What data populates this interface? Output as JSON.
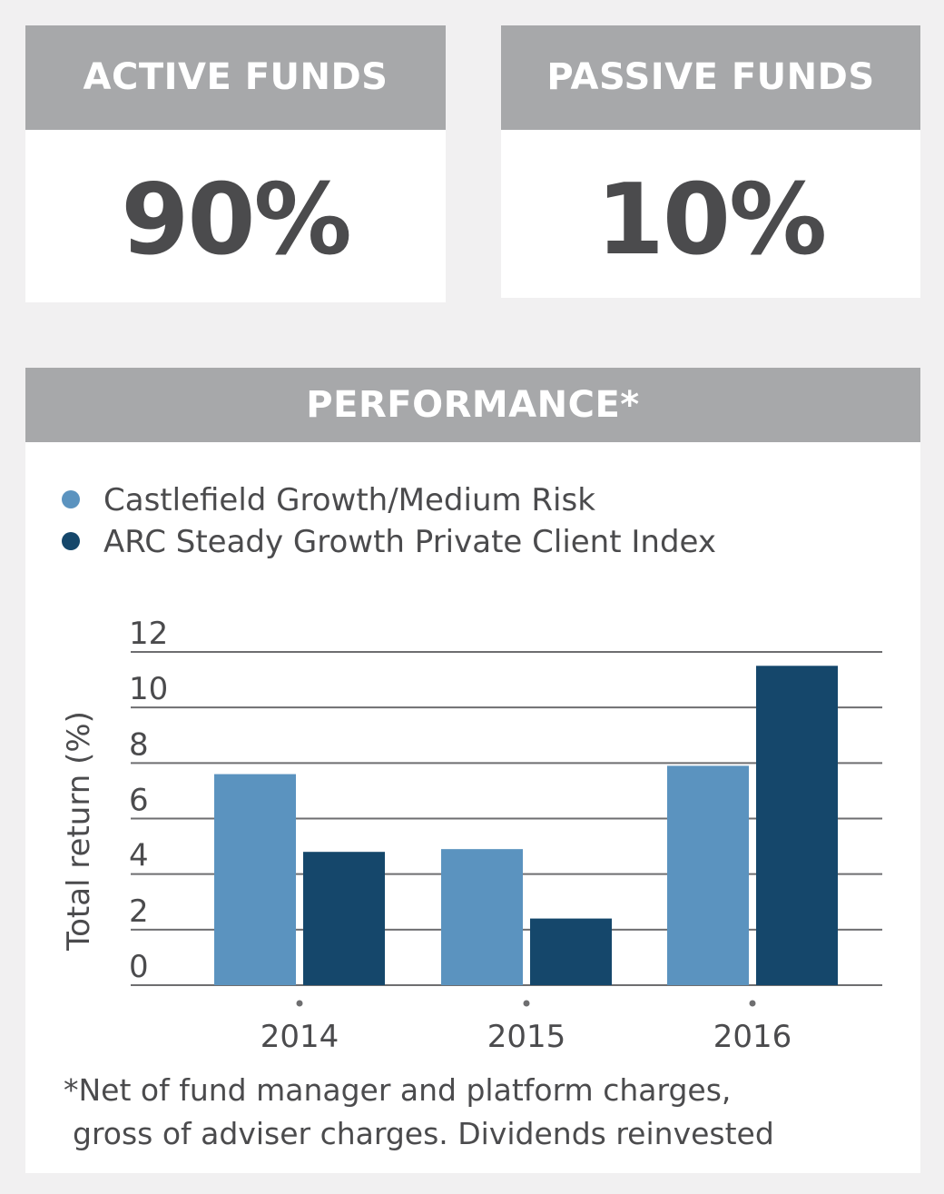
{
  "active": {
    "title": "ACTIVE FUNDS",
    "value": "90%"
  },
  "passive": {
    "title": "PASSIVE FUNDS",
    "value": "10%"
  },
  "performance": {
    "title": "PERFORMANCE*",
    "footnote_line1": "*Net of fund manager and platform charges,",
    "footnote_line2": "gross of adviser charges. Dividends reinvested"
  },
  "colors": {
    "header_bg": "#a7a8aa",
    "series_light": "#5b93bf",
    "series_dark": "#15476b",
    "text": "#4b4b4d",
    "grid": "#6e6e70"
  },
  "chart_data": {
    "type": "bar",
    "categories": [
      "2014",
      "2015",
      "2016"
    ],
    "series": [
      {
        "name": "Castlefield Growth/Medium Risk",
        "values": [
          7.6,
          4.9,
          7.9
        ]
      },
      {
        "name": "ARC Steady Growth Private Client Index",
        "values": [
          4.8,
          2.4,
          11.5
        ]
      }
    ],
    "ylabel": "Total return (%)",
    "yticks": [
      0,
      2,
      4,
      6,
      8,
      10,
      12
    ],
    "ylim": [
      0,
      12
    ],
    "grid": true,
    "legend": "top-left"
  }
}
